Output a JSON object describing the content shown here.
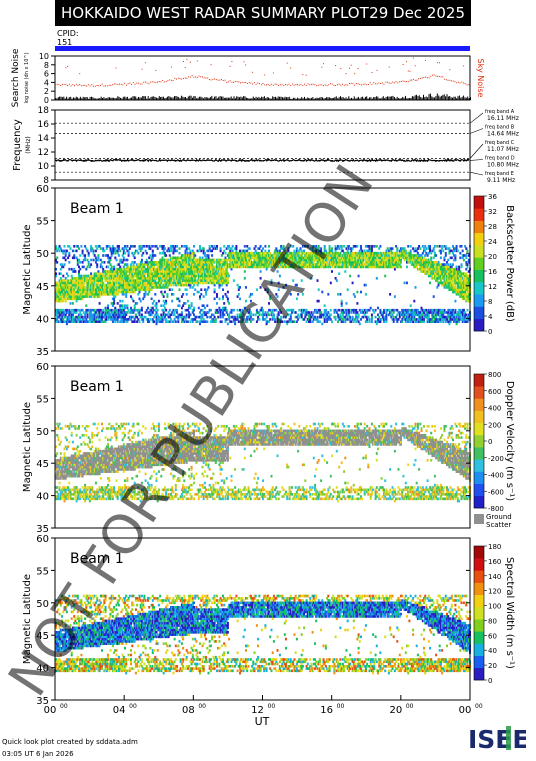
{
  "header": {
    "title": "HOKKAIDO WEST RADAR SUMMARY PLOT",
    "date": "29 Dec 2025",
    "cpid_label": "CPID:",
    "cpid_value": "151"
  },
  "colors": {
    "cpid_bar": "#1a1aff",
    "noise_sky": "#e03010",
    "noise_search": "#000000",
    "ground_scatter": "#909090",
    "freq_trace": "#000000"
  },
  "chart_data": [
    {
      "id": "noise",
      "type": "line",
      "ylabel": "Search Noise",
      "ylabel_sub": "log noise (dn x 10^)",
      "right_label": "Sky Noise",
      "yticks": [
        0,
        2,
        4,
        6,
        8,
        10
      ],
      "ylim": [
        0,
        10
      ],
      "x": [
        0,
        2,
        4,
        6,
        8,
        10,
        12,
        14,
        16,
        18,
        20,
        21,
        22,
        23,
        24
      ],
      "series": [
        {
          "name": "Sky Noise",
          "values": [
            3.6,
            3.4,
            3.7,
            4.2,
            5.5,
            4.3,
            3.7,
            3.5,
            3.6,
            3.8,
            4.1,
            4.8,
            5.8,
            4.4,
            3.6
          ]
        },
        {
          "name": "Search Noise",
          "values": [
            0.6,
            0.5,
            0.6,
            0.6,
            0.7,
            0.6,
            0.6,
            0.5,
            0.6,
            0.6,
            0.7,
            0.9,
            1.1,
            0.8,
            0.6
          ]
        }
      ]
    },
    {
      "id": "frequency",
      "type": "line",
      "ylabel": "Frequency",
      "yunit": "(MHz)",
      "yticks": [
        8,
        10,
        12,
        14,
        16,
        18
      ],
      "ylim": [
        8,
        18
      ],
      "band_labels": [
        {
          "name": "freq band A",
          "value": "16.11 MHz",
          "freq": 16.11
        },
        {
          "name": "freq band B",
          "value": "14.64 MHz",
          "freq": 14.64
        },
        {
          "name": "freq band C",
          "value": "11.07 MHz",
          "freq": 11.07
        },
        {
          "name": "freq band D",
          "value": "10.80 MHz",
          "freq": 10.8
        },
        {
          "name": "freq band E",
          "value": "9.11 MHz",
          "freq": 9.11
        }
      ],
      "operating_frequency_mhz": 10.8
    },
    {
      "id": "power",
      "type": "heatmap",
      "beam_label": "Beam  1",
      "ylabel": "Magnetic Latitude",
      "ylim": [
        35,
        60
      ],
      "yticks": [
        35,
        40,
        45,
        50,
        55,
        60
      ],
      "colorbar_label": "Backscatter Power (dB)",
      "colorbar_ticks": [
        0,
        4,
        8,
        12,
        16,
        20,
        24,
        28,
        32,
        36
      ],
      "colorbar_range": [
        0,
        36
      ]
    },
    {
      "id": "velocity",
      "type": "heatmap",
      "beam_label": "Beam  1",
      "ylabel": "Magnetic Latitude",
      "ylim": [
        35,
        60
      ],
      "yticks": [
        35,
        40,
        45,
        50,
        55,
        60
      ],
      "colorbar_label": "Doppler Velocity (m s⁻¹)",
      "colorbar_ticks": [
        800,
        600,
        400,
        200,
        0,
        -200,
        -400,
        -600,
        -800
      ],
      "colorbar_range": [
        -800,
        800
      ],
      "ground_scatter_label": "Ground Scatter"
    },
    {
      "id": "width",
      "type": "heatmap",
      "beam_label": "Beam  1",
      "ylabel": "Magnetic Latitude",
      "ylim": [
        35,
        60
      ],
      "yticks": [
        35,
        40,
        45,
        50,
        55,
        60
      ],
      "colorbar_label": "Spectral Width (m s⁻¹)",
      "colorbar_ticks": [
        0,
        20,
        40,
        60,
        80,
        100,
        120,
        140,
        160,
        180
      ],
      "colorbar_range": [
        0,
        180
      ]
    }
  ],
  "xaxis": {
    "label": "UT",
    "ticks": [
      {
        "hh": "00",
        "mm": "00",
        "h": 0
      },
      {
        "hh": "04",
        "mm": "00",
        "h": 4
      },
      {
        "hh": "08",
        "mm": "00",
        "h": 8
      },
      {
        "hh": "12",
        "mm": "00",
        "h": 12
      },
      {
        "hh": "16",
        "mm": "00",
        "h": 16
      },
      {
        "hh": "20",
        "mm": "00",
        "h": 20
      },
      {
        "hh": "00",
        "mm": "00",
        "h": 24
      }
    ],
    "xlim": [
      0,
      24
    ]
  },
  "watermark": "NOT FOR PUBLICATION",
  "footer": {
    "line1": "Quick look plot created by sddata.adm",
    "line2": "03:05 UT  6 Jan 2026"
  },
  "logo": {
    "text": "ISEE"
  }
}
